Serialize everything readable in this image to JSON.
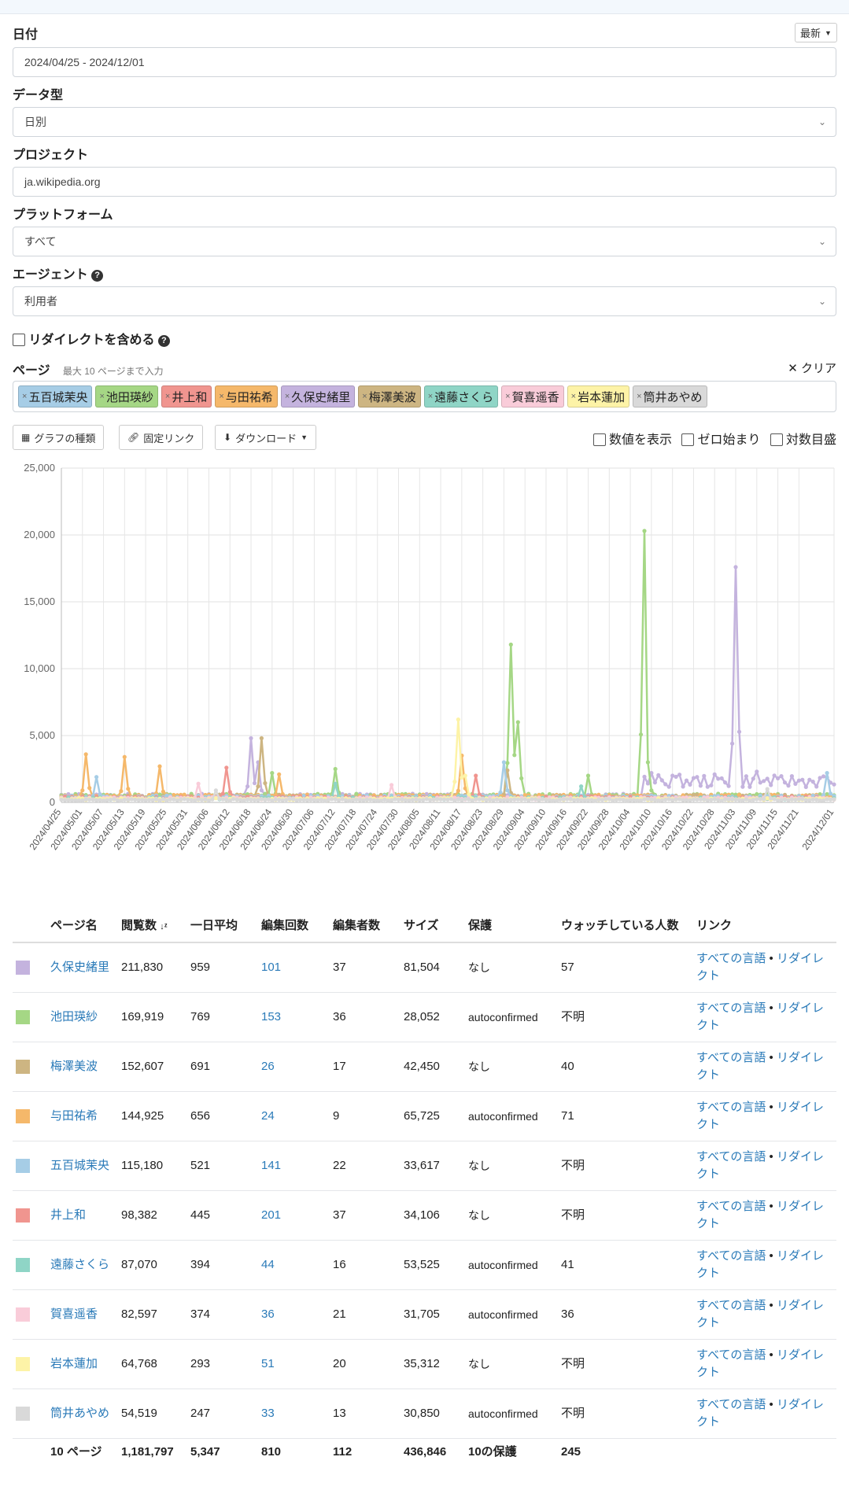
{
  "form": {
    "date_label": "日付",
    "date_value": "2024/04/25 - 2024/12/01",
    "latest_button": "最新",
    "datatype_label": "データ型",
    "datatype_value": "日別",
    "project_label": "プロジェクト",
    "project_value": "ja.wikipedia.org",
    "platform_label": "プラットフォーム",
    "platform_value": "すべて",
    "agent_label": "エージェント",
    "agent_value": "利用者",
    "redirect_label": "リダイレクトを含める",
    "pages_label": "ページ",
    "pages_hint": "最大 10 ページまで入力",
    "clear_label": "クリア",
    "tags": [
      {
        "name": "五百城茉央",
        "color": "#a6cde6"
      },
      {
        "name": "池田瑛紗",
        "color": "#a5d785"
      },
      {
        "name": "井上和",
        "color": "#f0958f"
      },
      {
        "name": "与田祐希",
        "color": "#f5b86a"
      },
      {
        "name": "久保史緒里",
        "color": "#c4b3de"
      },
      {
        "name": "梅澤美波",
        "color": "#cdb582"
      },
      {
        "name": "遠藤さくら",
        "color": "#8fd5c6"
      },
      {
        "name": "賀喜遥香",
        "color": "#f9ccd9"
      },
      {
        "name": "岩本蓮加",
        "color": "#fdf3a7"
      },
      {
        "name": "筒井あやめ",
        "color": "#d9d9d9"
      }
    ]
  },
  "toolbar": {
    "chart_type": "グラフの種類",
    "permalink": "固定リンク",
    "download": "ダウンロード",
    "show_values": "数値を表示",
    "zero_start": "ゼロ始まり",
    "log_scale": "対数目盛"
  },
  "chart_data": {
    "type": "line",
    "ylim": [
      0,
      25000
    ],
    "yticks": [
      "25,000",
      "20,000",
      "15,000",
      "10,000",
      "5,000",
      "0"
    ],
    "x_tick_labels": [
      "2024/04/25",
      "2024/05/01",
      "2024/05/07",
      "2024/05/13",
      "2024/05/19",
      "2024/05/25",
      "2024/05/31",
      "2024/06/06",
      "2024/06/12",
      "2024/06/18",
      "2024/06/24",
      "2024/06/30",
      "2024/07/06",
      "2024/07/12",
      "2024/07/18",
      "2024/07/24",
      "2024/07/30",
      "2024/08/05",
      "2024/08/11",
      "2024/08/17",
      "2024/08/23",
      "2024/08/29",
      "2024/09/04",
      "2024/09/10",
      "2024/09/16",
      "2024/09/22",
      "2024/09/28",
      "2024/10/04",
      "2024/10/10",
      "2024/10/16",
      "2024/10/22",
      "2024/10/28",
      "2024/11/03",
      "2024/11/09",
      "2024/11/15",
      "2024/11/21",
      "2024/12/01"
    ],
    "grid": true,
    "series": [
      {
        "name": "久保史緒里",
        "color": "#c4b3de",
        "base": 500,
        "peaks": [
          [
            2024,
            0
          ]
        ],
        "spikes": [
          [
            "2024/06/18",
            4800
          ],
          [
            "2024/06/20",
            3000
          ],
          [
            "2024/11/03",
            17600
          ],
          [
            "2024/10/10",
            2200
          ],
          [
            "2024/10/16",
            2000
          ],
          [
            "2024/10/28",
            2100
          ],
          [
            "2024/11/09",
            2300
          ],
          [
            "2024/11/15",
            1800
          ]
        ],
        "late_base": 1600
      },
      {
        "name": "池田瑛紗",
        "color": "#a5d785",
        "base": 500,
        "spikes": [
          [
            "2024/06/24",
            2200
          ],
          [
            "2024/07/12",
            2500
          ],
          [
            "2024/08/31",
            11800
          ],
          [
            "2024/09/02",
            6000
          ],
          [
            "2024/10/08",
            20300
          ],
          [
            "2024/10/09",
            3000
          ],
          [
            "2024/09/22",
            2000
          ]
        ]
      },
      {
        "name": "梅澤美波",
        "color": "#cdb582",
        "base": 450,
        "spikes": [
          [
            "2024/06/21",
            4800
          ],
          [
            "2024/08/30",
            2400
          ]
        ]
      },
      {
        "name": "与田祐希",
        "color": "#f5b86a",
        "base": 450,
        "spikes": [
          [
            "2024/05/02",
            3600
          ],
          [
            "2024/05/13",
            3400
          ],
          [
            "2024/05/23",
            2700
          ],
          [
            "2024/06/26",
            2100
          ],
          [
            "2024/08/17",
            3500
          ]
        ]
      },
      {
        "name": "五百城茉央",
        "color": "#a6cde6",
        "base": 400,
        "spikes": [
          [
            "2024/05/05",
            1900
          ],
          [
            "2024/08/29",
            3000
          ],
          [
            "2024/11/29",
            2200
          ]
        ]
      },
      {
        "name": "井上和",
        "color": "#f0958f",
        "base": 350,
        "spikes": [
          [
            "2024/06/11",
            2600
          ],
          [
            "2024/08/21",
            2000
          ]
        ]
      },
      {
        "name": "遠藤さくら",
        "color": "#8fd5c6",
        "base": 300,
        "spikes": [
          [
            "2024/07/12",
            1400
          ],
          [
            "2024/09/20",
            1200
          ]
        ]
      },
      {
        "name": "賀喜遥香",
        "color": "#f9ccd9",
        "base": 300,
        "spikes": [
          [
            "2024/06/03",
            1400
          ],
          [
            "2024/07/28",
            1300
          ]
        ]
      },
      {
        "name": "岩本蓮加",
        "color": "#fdf3a7",
        "base": 250,
        "spikes": [
          [
            "2024/08/16",
            6200
          ],
          [
            "2024/08/18",
            2000
          ]
        ]
      },
      {
        "name": "筒井あやめ",
        "color": "#d9d9d9",
        "base": 200,
        "spikes": [
          [
            "2024/06/08",
            900
          ],
          [
            "2024/11/12",
            1000
          ]
        ]
      }
    ]
  },
  "table": {
    "headers": {
      "name": "ページ名",
      "views": "閲覧数",
      "daily": "一日平均",
      "edits": "編集回数",
      "editors": "編集者数",
      "size": "サイズ",
      "protection": "保護",
      "watchers": "ウォッチしている人数",
      "links": "リンク"
    },
    "rows": [
      {
        "color": "#c4b3de",
        "name": "久保史緒里",
        "views": "211,830",
        "daily": "959",
        "edits": "101",
        "editors": "37",
        "size": "81,504",
        "protection": "なし",
        "watchers": "57",
        "all_lang": "すべての言語",
        "redirect": "リダイレクト"
      },
      {
        "color": "#a5d785",
        "name": "池田瑛紗",
        "views": "169,919",
        "daily": "769",
        "edits": "153",
        "editors": "36",
        "size": "28,052",
        "protection": "autoconfirmed",
        "watchers": "不明",
        "all_lang": "すべての言語",
        "redirect": "リダイレクト"
      },
      {
        "color": "#cdb582",
        "name": "梅澤美波",
        "views": "152,607",
        "daily": "691",
        "edits": "26",
        "editors": "17",
        "size": "42,450",
        "protection": "なし",
        "watchers": "40",
        "all_lang": "すべての言語",
        "redirect": "リダイレクト"
      },
      {
        "color": "#f5b86a",
        "name": "与田祐希",
        "views": "144,925",
        "daily": "656",
        "edits": "24",
        "editors": "9",
        "size": "65,725",
        "protection": "autoconfirmed",
        "watchers": "71",
        "all_lang": "すべての言語",
        "redirect": "リダイレクト"
      },
      {
        "color": "#a6cde6",
        "name": "五百城茉央",
        "views": "115,180",
        "daily": "521",
        "edits": "141",
        "editors": "22",
        "size": "33,617",
        "protection": "なし",
        "watchers": "不明",
        "all_lang": "すべての言語",
        "redirect": "リダイレクト"
      },
      {
        "color": "#f0958f",
        "name": "井上和",
        "views": "98,382",
        "daily": "445",
        "edits": "201",
        "editors": "37",
        "size": "34,106",
        "protection": "なし",
        "watchers": "不明",
        "all_lang": "すべての言語",
        "redirect": "リダイレクト"
      },
      {
        "color": "#8fd5c6",
        "name": "遠藤さくら",
        "views": "87,070",
        "daily": "394",
        "edits": "44",
        "editors": "16",
        "size": "53,525",
        "protection": "autoconfirmed",
        "watchers": "41",
        "all_lang": "すべての言語",
        "redirect": "リダイレクト"
      },
      {
        "color": "#f9ccd9",
        "name": "賀喜遥香",
        "views": "82,597",
        "daily": "374",
        "edits": "36",
        "editors": "21",
        "size": "31,705",
        "protection": "autoconfirmed",
        "watchers": "36",
        "all_lang": "すべての言語",
        "redirect": "リダイレクト"
      },
      {
        "color": "#fdf3a7",
        "name": "岩本蓮加",
        "views": "64,768",
        "daily": "293",
        "edits": "51",
        "editors": "20",
        "size": "35,312",
        "protection": "なし",
        "watchers": "不明",
        "all_lang": "すべての言語",
        "redirect": "リダイレクト"
      },
      {
        "color": "#d9d9d9",
        "name": "筒井あやめ",
        "views": "54,519",
        "daily": "247",
        "edits": "33",
        "editors": "13",
        "size": "30,850",
        "protection": "autoconfirmed",
        "watchers": "不明",
        "all_lang": "すべての言語",
        "redirect": "リダイレクト"
      }
    ],
    "footer": {
      "name": "10 ページ",
      "views": "1,181,797",
      "daily": "5,347",
      "edits": "810",
      "editors": "112",
      "size": "436,846",
      "protection": "10の保護",
      "watchers": "245"
    }
  }
}
